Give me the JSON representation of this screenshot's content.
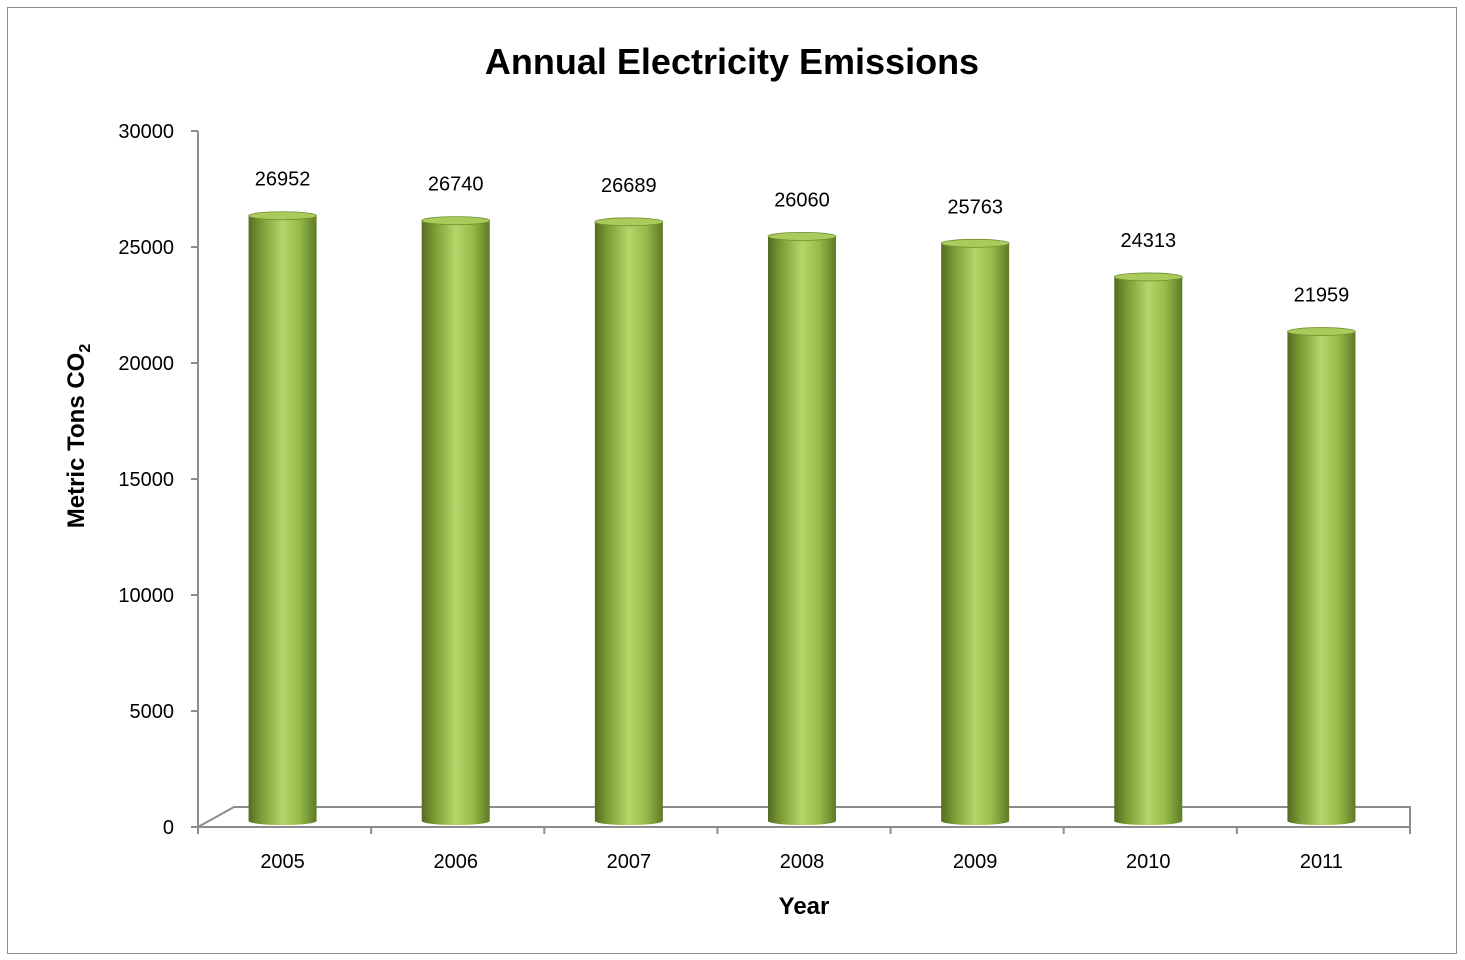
{
  "chart_data": {
    "type": "bar",
    "title": "Annual Electricity Emissions",
    "xlabel": "Year",
    "ylabel_main": "Metric Tons CO",
    "ylabel_sub": "2",
    "categories": [
      "2005",
      "2006",
      "2007",
      "2008",
      "2009",
      "2010",
      "2011"
    ],
    "values": [
      26952,
      26740,
      26689,
      26060,
      25763,
      24313,
      21959
    ],
    "data_labels": [
      "26952",
      "26740",
      "26689",
      "26060",
      "25763",
      "24313",
      "21959"
    ],
    "ylim": [
      0,
      30000
    ],
    "yticks": [
      0,
      5000,
      10000,
      15000,
      20000,
      25000,
      30000
    ],
    "ytick_labels": [
      "0",
      "5000",
      "10000",
      "15000",
      "20000",
      "25000",
      "30000"
    ],
    "grid": false,
    "legend": "none",
    "colors": {
      "bar_dark": "#556b23",
      "bar_mid": "#8db33f",
      "bar_light": "#b5d66a",
      "bar_top": "#a9cb5c",
      "axis": "#8c8c8c"
    }
  }
}
